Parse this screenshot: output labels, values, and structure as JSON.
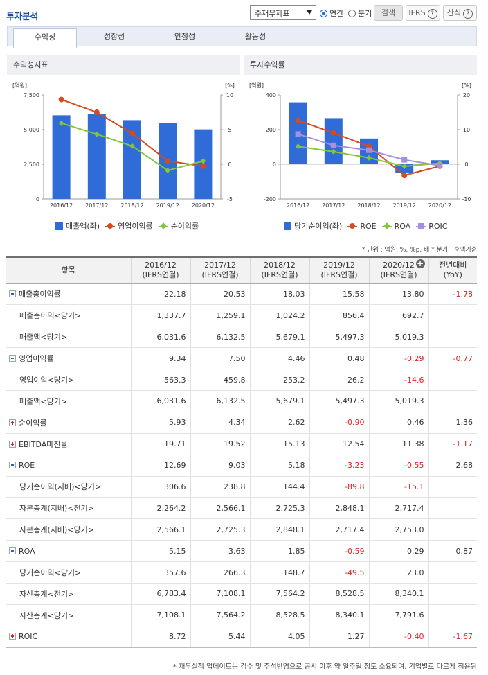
{
  "header": {
    "title": "투자분석",
    "select_value": "주재무제표",
    "radio_annual": "연간",
    "radio_quarter": "분기",
    "search_button": "검색",
    "ifrs_button": "IFRS",
    "formula_button": "산식",
    "help_glyph": "?"
  },
  "tabs": [
    {
      "label": "수익성",
      "active": true
    },
    {
      "label": "성장성",
      "active": false
    },
    {
      "label": "안정성",
      "active": false
    },
    {
      "label": "활동성",
      "active": false
    }
  ],
  "charts": {
    "left_title": "수익성지표",
    "right_title": "투자수익률"
  },
  "chart_data": [
    {
      "type": "bar",
      "title": "수익성지표",
      "categories": [
        "2016/12",
        "2017/12",
        "2018/12",
        "2019/12",
        "2020/12"
      ],
      "y_left_unit": "[억원]",
      "y_right_unit": "[%]",
      "y_left_ticks": [
        "7,500",
        "5,000",
        "2,500",
        "0"
      ],
      "y_right_ticks": [
        "10",
        "5",
        "0",
        "-5"
      ],
      "y_left_range": [
        0,
        7500
      ],
      "y_right_range": [
        -5,
        10
      ],
      "series": [
        {
          "name": "매출액(좌)",
          "kind": "bar",
          "axis": "left",
          "color": "#2f6cd8",
          "values": [
            6031.6,
            6132.5,
            5679.1,
            5497.3,
            5019.3
          ]
        },
        {
          "name": "영업이익률",
          "kind": "line",
          "axis": "right",
          "marker": "circle",
          "color": "#d64a1b",
          "values": [
            9.34,
            7.5,
            4.46,
            0.48,
            -0.29
          ]
        },
        {
          "name": "순이익률",
          "kind": "line",
          "axis": "right",
          "marker": "diamond",
          "color": "#86c43a",
          "values": [
            5.93,
            4.34,
            2.62,
            -0.9,
            0.46
          ]
        }
      ]
    },
    {
      "type": "bar",
      "title": "투자수익률",
      "categories": [
        "2016/12",
        "2017/12",
        "2018/12",
        "2019/12",
        "2020/12"
      ],
      "y_left_unit": "[억원]",
      "y_right_unit": "[%]",
      "y_left_ticks": [
        "400",
        "200",
        "0",
        "-200"
      ],
      "y_right_ticks": [
        "20",
        "10",
        "0",
        "-10"
      ],
      "y_left_range": [
        -200,
        400
      ],
      "y_right_range": [
        -10,
        20
      ],
      "series": [
        {
          "name": "당기순이익(좌)",
          "kind": "bar",
          "axis": "left",
          "color": "#2f6cd8",
          "values": [
            357.6,
            266.3,
            148.7,
            -49.5,
            23.0
          ]
        },
        {
          "name": "ROE",
          "kind": "line",
          "axis": "right",
          "marker": "circle",
          "color": "#d64a1b",
          "values": [
            12.69,
            9.03,
            5.18,
            -3.23,
            -0.55
          ]
        },
        {
          "name": "ROA",
          "kind": "line",
          "axis": "right",
          "marker": "diamond",
          "color": "#86c43a",
          "values": [
            5.15,
            3.63,
            1.85,
            -0.59,
            0.29
          ]
        },
        {
          "name": "ROIC",
          "kind": "line",
          "axis": "right",
          "marker": "square",
          "color": "#a88ee0",
          "values": [
            8.72,
            5.44,
            4.05,
            1.27,
            -0.4
          ]
        }
      ]
    }
  ],
  "units_note": "* 단위 : 억원, %, %p, 배   * 분기 : 순액기준",
  "table": {
    "item_header": "항목",
    "columns": [
      {
        "period": "2016/12",
        "basis": "(IFRS연결)"
      },
      {
        "period": "2017/12",
        "basis": "(IFRS연결)"
      },
      {
        "period": "2018/12",
        "basis": "(IFRS연결)"
      },
      {
        "period": "2019/12",
        "basis": "(IFRS연결)"
      },
      {
        "period": "2020/12",
        "basis": "(IFRS연결)"
      }
    ],
    "yoy_header": "전년대비",
    "yoy_sub": "(YoY)",
    "add_glyph": "+",
    "rows": [
      {
        "label": "매출총이익률",
        "toggle": "minus",
        "values": [
          "22.18",
          "20.53",
          "18.03",
          "15.58",
          "13.80"
        ],
        "yoy": "-1.78"
      },
      {
        "label": "매출총이익<당기>",
        "sub": true,
        "values": [
          "1,337.7",
          "1,259.1",
          "1,024.2",
          "856.4",
          "692.7"
        ],
        "yoy": ""
      },
      {
        "label": "매출액<당기>",
        "sub": true,
        "values": [
          "6,031.6",
          "6,132.5",
          "5,679.1",
          "5,497.3",
          "5,019.3"
        ],
        "yoy": ""
      },
      {
        "label": "영업이익률",
        "toggle": "minus",
        "values": [
          "9.34",
          "7.50",
          "4.46",
          "0.48",
          "-0.29"
        ],
        "yoy": "-0.77"
      },
      {
        "label": "영업이익<당기>",
        "sub": true,
        "values": [
          "563.3",
          "459.8",
          "253.2",
          "26.2",
          "-14.6"
        ],
        "yoy": ""
      },
      {
        "label": "매출액<당기>",
        "sub": true,
        "values": [
          "6,031.6",
          "6,132.5",
          "5,679.1",
          "5,497.3",
          "5,019.3"
        ],
        "yoy": ""
      },
      {
        "label": "순이익률",
        "toggle": "plus",
        "values": [
          "5.93",
          "4.34",
          "2.62",
          "-0.90",
          "0.46"
        ],
        "yoy": "1.36"
      },
      {
        "label": "EBITDA마진율",
        "toggle": "plus",
        "values": [
          "19.71",
          "19.52",
          "15.13",
          "12.54",
          "11.38"
        ],
        "yoy": "-1.17"
      },
      {
        "label": "ROE",
        "toggle": "minus",
        "values": [
          "12.69",
          "9.03",
          "5.18",
          "-3.23",
          "-0.55"
        ],
        "yoy": "2.68"
      },
      {
        "label": "당기순이익(지배)<당기>",
        "sub": true,
        "values": [
          "306.6",
          "238.8",
          "144.4",
          "-89.8",
          "-15.1"
        ],
        "yoy": ""
      },
      {
        "label": "자본총계(지배)<전기>",
        "sub": true,
        "values": [
          "2,264.2",
          "2,566.1",
          "2,725.3",
          "2,848.1",
          "2,717.4"
        ],
        "yoy": ""
      },
      {
        "label": "자본총계(지배)<당기>",
        "sub": true,
        "values": [
          "2,566.1",
          "2,725.3",
          "2,848.1",
          "2,717.4",
          "2,753.0"
        ],
        "yoy": ""
      },
      {
        "label": "ROA",
        "toggle": "minus",
        "values": [
          "5.15",
          "3.63",
          "1.85",
          "-0.59",
          "0.29"
        ],
        "yoy": "0.87"
      },
      {
        "label": "당기순이익<당기>",
        "sub": true,
        "values": [
          "357.6",
          "266.3",
          "148.7",
          "-49.5",
          "23.0"
        ],
        "yoy": ""
      },
      {
        "label": "자산총계<전기>",
        "sub": true,
        "values": [
          "6,783.4",
          "7,108.1",
          "7,564.2",
          "8,528.5",
          "8,340.1"
        ],
        "yoy": ""
      },
      {
        "label": "자산총계<당기>",
        "sub": true,
        "values": [
          "7,108.1",
          "7,564.2",
          "8,528.5",
          "8,340.1",
          "7,791.6"
        ],
        "yoy": ""
      },
      {
        "label": "ROIC",
        "toggle": "plus",
        "values": [
          "8.72",
          "5.44",
          "4.05",
          "1.27",
          "-0.40"
        ],
        "yoy": "-1.67"
      }
    ]
  },
  "footnote": "* 재무실적 업데이트는 검수 및 주석반영으로 공시 이후 약 일주일 정도 소요되며, 기업별로 다르게 적용됨"
}
